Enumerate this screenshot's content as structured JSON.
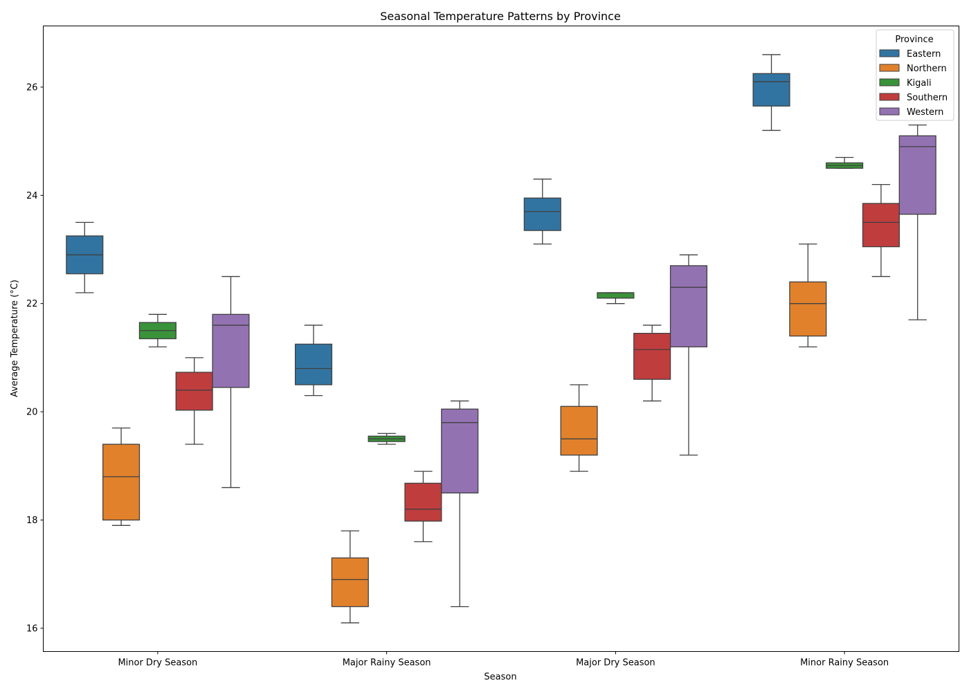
{
  "chart_data": {
    "type": "box",
    "title": "Seasonal Temperature Patterns by Province",
    "xlabel": "Season",
    "ylabel": "Average Temperature (°C)",
    "categories": [
      "Minor Dry Season",
      "Major Rainy Season",
      "Major Dry Season",
      "Minor Rainy Season"
    ],
    "ylim": [
      15.57,
      27.13
    ],
    "yticks": [
      16,
      18,
      20,
      22,
      24,
      26
    ],
    "grid": false,
    "legend": {
      "title": "Province",
      "placement": "top-right"
    },
    "series": [
      {
        "name": "Eastern",
        "color": "#3274a1",
        "boxes": [
          {
            "min": 22.2,
            "q1": 22.55,
            "median": 22.9,
            "q3": 23.25,
            "max": 23.5
          },
          {
            "min": 20.3,
            "q1": 20.5,
            "median": 20.8,
            "q3": 21.25,
            "max": 21.6
          },
          {
            "min": 23.1,
            "q1": 23.35,
            "median": 23.7,
            "q3": 23.95,
            "max": 24.3
          },
          {
            "min": 25.2,
            "q1": 25.65,
            "median": 26.1,
            "q3": 26.25,
            "max": 26.6
          }
        ]
      },
      {
        "name": "Northern",
        "color": "#e1812c",
        "boxes": [
          {
            "min": 17.9,
            "q1": 18.0,
            "median": 18.8,
            "q3": 19.4,
            "max": 19.7
          },
          {
            "min": 16.1,
            "q1": 16.4,
            "median": 16.9,
            "q3": 17.3,
            "max": 17.8
          },
          {
            "min": 18.9,
            "q1": 19.2,
            "median": 19.5,
            "q3": 20.1,
            "max": 20.5
          },
          {
            "min": 21.2,
            "q1": 21.4,
            "median": 22.0,
            "q3": 22.4,
            "max": 23.1
          }
        ]
      },
      {
        "name": "Kigali",
        "color": "#3a923a",
        "boxes": [
          {
            "min": 21.2,
            "q1": 21.35,
            "median": 21.5,
            "q3": 21.65,
            "max": 21.8
          },
          {
            "min": 19.4,
            "q1": 19.45,
            "median": 19.5,
            "q3": 19.55,
            "max": 19.6
          },
          {
            "min": 22.0,
            "q1": 22.1,
            "median": 22.2,
            "q3": 22.2,
            "max": 22.2
          },
          {
            "min": 24.5,
            "q1": 24.5,
            "median": 24.55,
            "q3": 24.6,
            "max": 24.7
          }
        ]
      },
      {
        "name": "Southern",
        "color": "#c03d3e",
        "boxes": [
          {
            "min": 19.4,
            "q1": 20.03,
            "median": 20.4,
            "q3": 20.73,
            "max": 21.0
          },
          {
            "min": 17.6,
            "q1": 17.98,
            "median": 18.2,
            "q3": 18.68,
            "max": 18.9
          },
          {
            "min": 20.2,
            "q1": 20.6,
            "median": 21.15,
            "q3": 21.45,
            "max": 21.6
          },
          {
            "min": 22.5,
            "q1": 23.05,
            "median": 23.5,
            "q3": 23.85,
            "max": 24.2
          }
        ]
      },
      {
        "name": "Western",
        "color": "#9372b2",
        "boxes": [
          {
            "min": 18.6,
            "q1": 20.45,
            "median": 21.6,
            "q3": 21.8,
            "max": 22.5
          },
          {
            "min": 16.4,
            "q1": 18.5,
            "median": 19.8,
            "q3": 20.05,
            "max": 20.2
          },
          {
            "min": 19.2,
            "q1": 21.2,
            "median": 22.3,
            "q3": 22.7,
            "max": 22.9
          },
          {
            "min": 21.7,
            "q1": 23.65,
            "median": 24.9,
            "q3": 25.1,
            "max": 25.3
          }
        ]
      }
    ]
  }
}
